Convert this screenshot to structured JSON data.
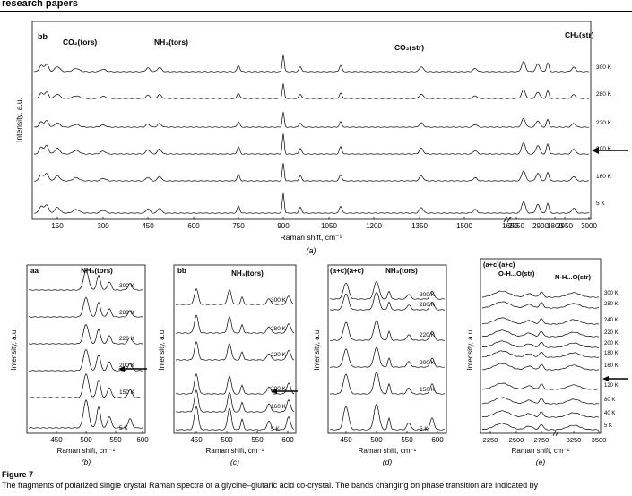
{
  "header": {
    "text": "research papers"
  },
  "panels": {
    "a": {
      "label": "(a)",
      "xlabel": "Raman shift, cm⁻¹",
      "ylabel": "Intensity, a.u.",
      "left_ticks": [
        "150",
        "300",
        "450",
        "600",
        "750",
        "900",
        "1050",
        "1200",
        "1350",
        "1500",
        "1650",
        "1800"
      ],
      "right_ticks": [
        "2850",
        "2900",
        "2950",
        "3000"
      ],
      "temps": [
        "300 K",
        "280 K",
        "220 K",
        "200 K",
        "160 K",
        "5 K"
      ],
      "annotations": [
        "bb",
        "CO₂(tors)",
        "NH₃(tors)",
        "CO₂(str)",
        "CH₂(str)"
      ]
    },
    "b": {
      "label": "(b)",
      "title": "aa",
      "band": "NH₃(tors)",
      "xlabel": "Raman shift, cm⁻¹",
      "ylabel": "Intensity, a.u.",
      "ticks": [
        "450",
        "500",
        "550",
        "600"
      ],
      "temps": [
        "300 K",
        "280 K",
        "220 K",
        "200 K",
        "150 K",
        "5 K"
      ]
    },
    "c": {
      "label": "(c)",
      "title": "bb",
      "band": "NH₃(tors)",
      "xlabel": "Raman shift, cm⁻¹",
      "ylabel": "Intensity, a.u.",
      "ticks": [
        "450",
        "500",
        "550",
        "600"
      ],
      "temps": [
        "300 K",
        "280 K",
        "220 K",
        "200 K",
        "160 K",
        "5 K"
      ]
    },
    "d": {
      "label": "(d)",
      "title": "(a+c)(a+c)",
      "band": "NH₃(tors)",
      "xlabel": "Raman shift, cm⁻¹",
      "ylabel": "Intensity, a.u.",
      "ticks": [
        "450",
        "500",
        "550",
        "600"
      ],
      "temps": [
        "300 K",
        "280 K",
        "220 K",
        "200 K",
        "150 K",
        "5 K"
      ]
    },
    "e": {
      "label": "(e)",
      "title": "(a+c)(a+c)",
      "band1": "O-H...O(str)",
      "band2": "N-H...O(str)",
      "xlabel": "Raman shift, cm⁻¹",
      "ylabel": "Intensity, a.u.",
      "ticks": [
        "2250",
        "2500",
        "2750",
        "3250",
        "3500"
      ],
      "temps": [
        "300 K",
        "280 K",
        "240 K",
        "220 K",
        "200 K",
        "180 K",
        "160 K",
        "120 K",
        "80 K",
        "40 K",
        "5 K"
      ]
    }
  },
  "caption": {
    "title": "Figure 7",
    "text": "The fragments of polarized single crystal Raman spectra of a glycine–glutaric acid co-crystal. The bands changing on phase transition are indicated by"
  },
  "colors": {
    "ink": "#000000"
  }
}
